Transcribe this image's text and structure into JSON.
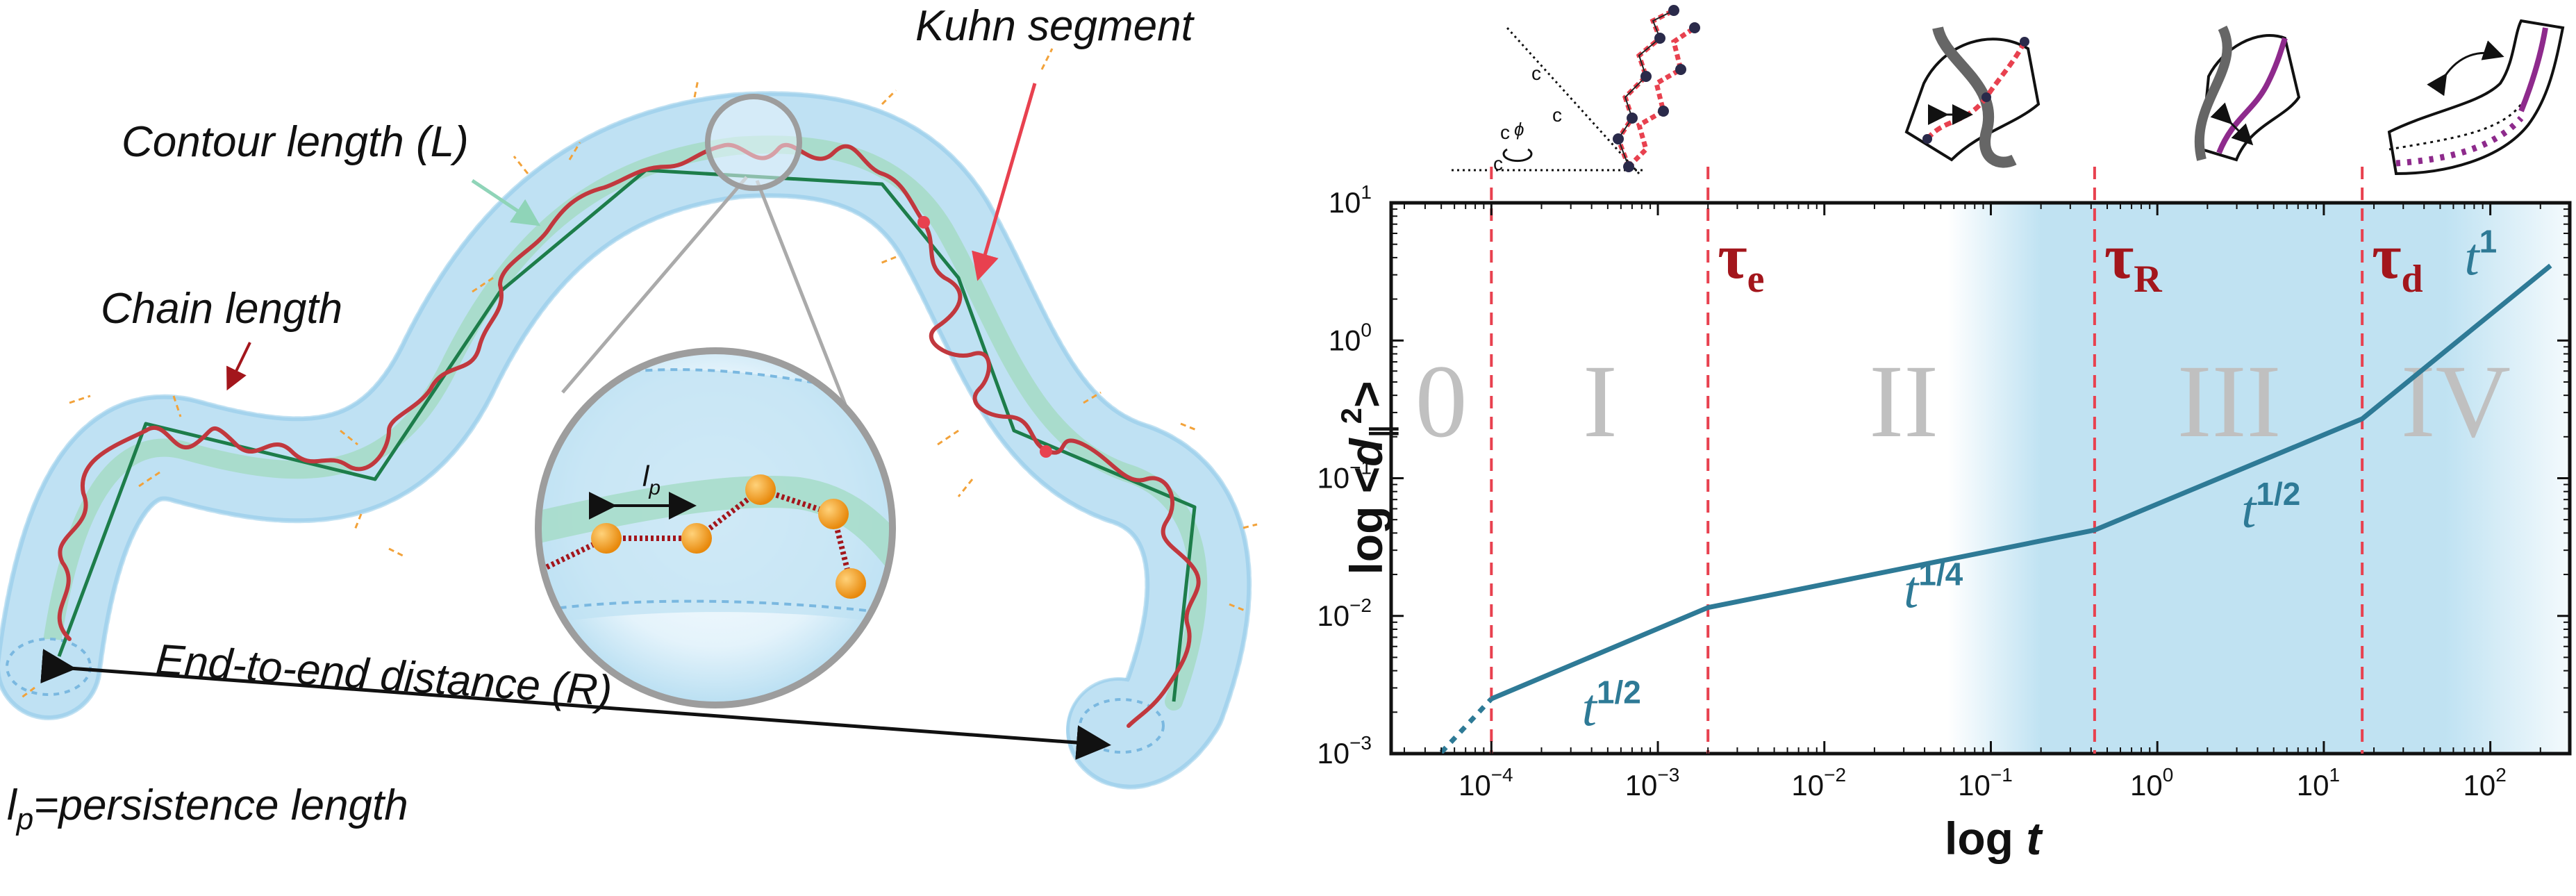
{
  "left_panel": {
    "labels": {
      "kuhn": "Kuhn segment",
      "contour": "Contour length (L)",
      "chain": "Chain length",
      "end_to_end": "End-to-end distance (R)",
      "lp_symbol": "l",
      "lp_sub": "p",
      "persistence_main": "=persistence length"
    }
  },
  "chart_data": {
    "type": "line",
    "xlabel": "log t",
    "ylabel": "log <d∥²>",
    "xscale": "log",
    "yscale": "log",
    "xlim": [
      2.5e-05,
      300
    ],
    "ylim": [
      0.001,
      10
    ],
    "x_ticks": [
      {
        "value": 0.0001,
        "base": "10",
        "exp": "−4"
      },
      {
        "value": 0.001,
        "base": "10",
        "exp": "−3"
      },
      {
        "value": 0.01,
        "base": "10",
        "exp": "−2"
      },
      {
        "value": 0.1,
        "base": "10",
        "exp": "−1"
      },
      {
        "value": 1,
        "base": "10",
        "exp": "0"
      },
      {
        "value": 10,
        "base": "10",
        "exp": "1"
      },
      {
        "value": 100,
        "base": "10",
        "exp": "2"
      }
    ],
    "y_ticks": [
      {
        "value": 0.001,
        "base": "10",
        "exp": "−3"
      },
      {
        "value": 0.01,
        "base": "10",
        "exp": "−2"
      },
      {
        "value": 0.1,
        "base": "10",
        "exp": "−1"
      },
      {
        "value": 1,
        "base": "10",
        "exp": "0"
      },
      {
        "value": 10,
        "base": "10",
        "exp": "1"
      }
    ],
    "series": [
      {
        "style": "dashed",
        "color": "#2e7a96",
        "points": [
          [
            5e-05,
            0.00102
          ],
          [
            0.0001,
            0.0025
          ]
        ]
      },
      {
        "style": "solid",
        "color": "#2e7a96",
        "points": [
          [
            0.0001,
            0.0025
          ],
          [
            0.002,
            0.0115
          ],
          [
            0.42,
            0.042
          ],
          [
            17,
            0.27
          ],
          [
            230,
            3.5
          ]
        ]
      }
    ],
    "crossovers": [
      {
        "x": 0.0001,
        "label": ""
      },
      {
        "x": 0.002,
        "label": "τ",
        "sub": "e"
      },
      {
        "x": 0.42,
        "label": "τ",
        "sub": "R"
      },
      {
        "x": 17,
        "label": "τ",
        "sub": "d"
      }
    ],
    "regimes": [
      {
        "label": "0",
        "x": 5e-05
      },
      {
        "label": "I",
        "x": 0.00045
      },
      {
        "label": "II",
        "x": 0.03
      },
      {
        "label": "III",
        "x": 2.7
      },
      {
        "label": "IV",
        "x": 62
      }
    ],
    "slope_labels": [
      {
        "base": "t",
        "exp": "1/2",
        "x": 0.00035,
        "y": 0.0016
      },
      {
        "base": "t",
        "exp": "1/4",
        "x": 0.03,
        "y": 0.0115
      },
      {
        "base": "t",
        "exp": "1/2",
        "x": 3.2,
        "y": 0.044
      },
      {
        "base": "t",
        "exp": "1",
        "x": 70,
        "y": 3.0
      }
    ],
    "shading": {
      "from": 0.055,
      "to": 300,
      "color": "#8ccbe8"
    },
    "inset_labels": [
      "c",
      "c",
      "c",
      "c",
      "ϕ"
    ]
  }
}
